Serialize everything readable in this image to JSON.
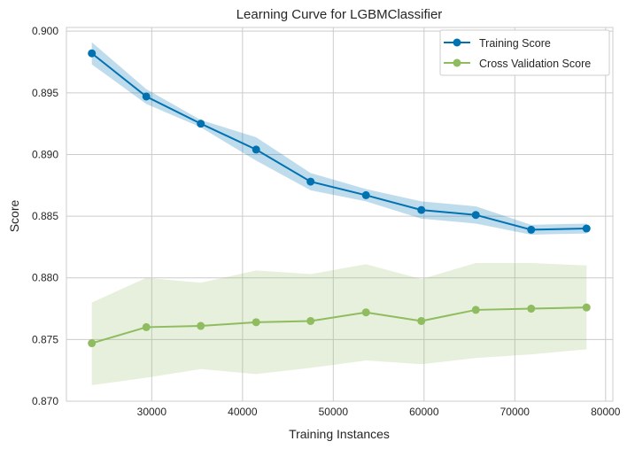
{
  "chart_data": {
    "type": "line",
    "title": "Learning Curve for LGBMClassifier",
    "xlabel": "Training Instances",
    "ylabel": "Score",
    "xlim": [
      20600,
      80800
    ],
    "ylim": [
      0.87,
      0.9003
    ],
    "xticks": [
      30000,
      40000,
      50000,
      60000,
      70000,
      80000
    ],
    "yticks": [
      0.87,
      0.875,
      0.88,
      0.885,
      0.89,
      0.895,
      0.9
    ],
    "grid": true,
    "legend_position": "top-right",
    "x": [
      23400,
      29400,
      35400,
      41500,
      47500,
      53600,
      59700,
      65700,
      71800,
      77900
    ],
    "series": [
      {
        "name": "Training Score",
        "color": "#0072b2",
        "band_color": "#0072b2",
        "values": [
          0.8982,
          0.8947,
          0.8925,
          0.8904,
          0.8878,
          0.8867,
          0.8855,
          0.8851,
          0.8839,
          0.884
        ],
        "band_upper": [
          0.8991,
          0.8953,
          0.8928,
          0.8914,
          0.8885,
          0.8872,
          0.8862,
          0.8858,
          0.8843,
          0.8844
        ],
        "band_lower": [
          0.8973,
          0.8941,
          0.8922,
          0.8895,
          0.8871,
          0.8862,
          0.8848,
          0.8844,
          0.8835,
          0.8836
        ]
      },
      {
        "name": "Cross Validation Score",
        "color": "#8fbc5f",
        "band_color": "#8fbc5f",
        "values": [
          0.8747,
          0.876,
          0.8761,
          0.8764,
          0.8765,
          0.8772,
          0.8765,
          0.8774,
          0.8775,
          0.8776
        ],
        "band_upper": [
          0.878,
          0.88,
          0.8796,
          0.8806,
          0.8803,
          0.8811,
          0.8799,
          0.8812,
          0.8812,
          0.881
        ],
        "band_lower": [
          0.8713,
          0.8719,
          0.8726,
          0.8722,
          0.8727,
          0.8733,
          0.873,
          0.8735,
          0.8738,
          0.8742
        ]
      }
    ]
  }
}
